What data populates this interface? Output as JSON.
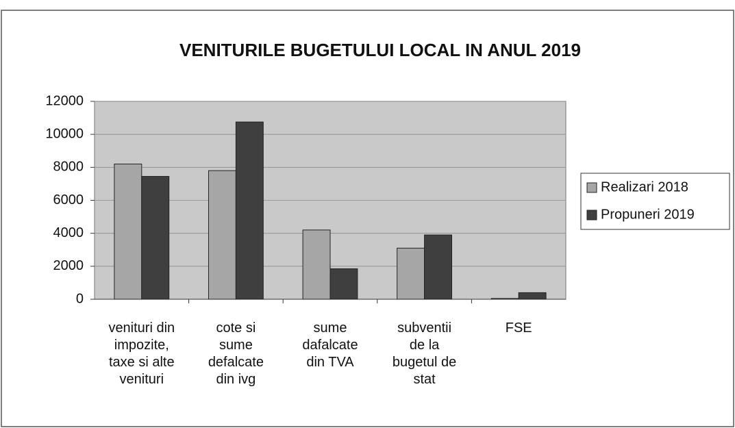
{
  "chart_data": {
    "type": "bar",
    "title": "VENITURILE BUGETULUI LOCAL IN ANUL 2019",
    "categories": [
      "venituri din\nimpozite,\ntaxe si alte\nvenituri",
      "cote si\nsume\ndefalcate\ndin ivg",
      "sume\ndafalcate\ndin TVA",
      "subventii\nde la\nbugetul de\nstat",
      "FSE"
    ],
    "series": [
      {
        "name": "Realizari 2018",
        "color": "#a6a6a6",
        "values": [
          8200,
          7800,
          4200,
          3100,
          50
        ]
      },
      {
        "name": "Propuneri 2019",
        "color": "#3f3f3f",
        "values": [
          7450,
          10750,
          1850,
          3900,
          400
        ]
      }
    ],
    "ylim": [
      0,
      12000
    ],
    "yticks": [
      0,
      2000,
      4000,
      6000,
      8000,
      10000,
      12000
    ],
    "grid": true,
    "legend": "right"
  }
}
